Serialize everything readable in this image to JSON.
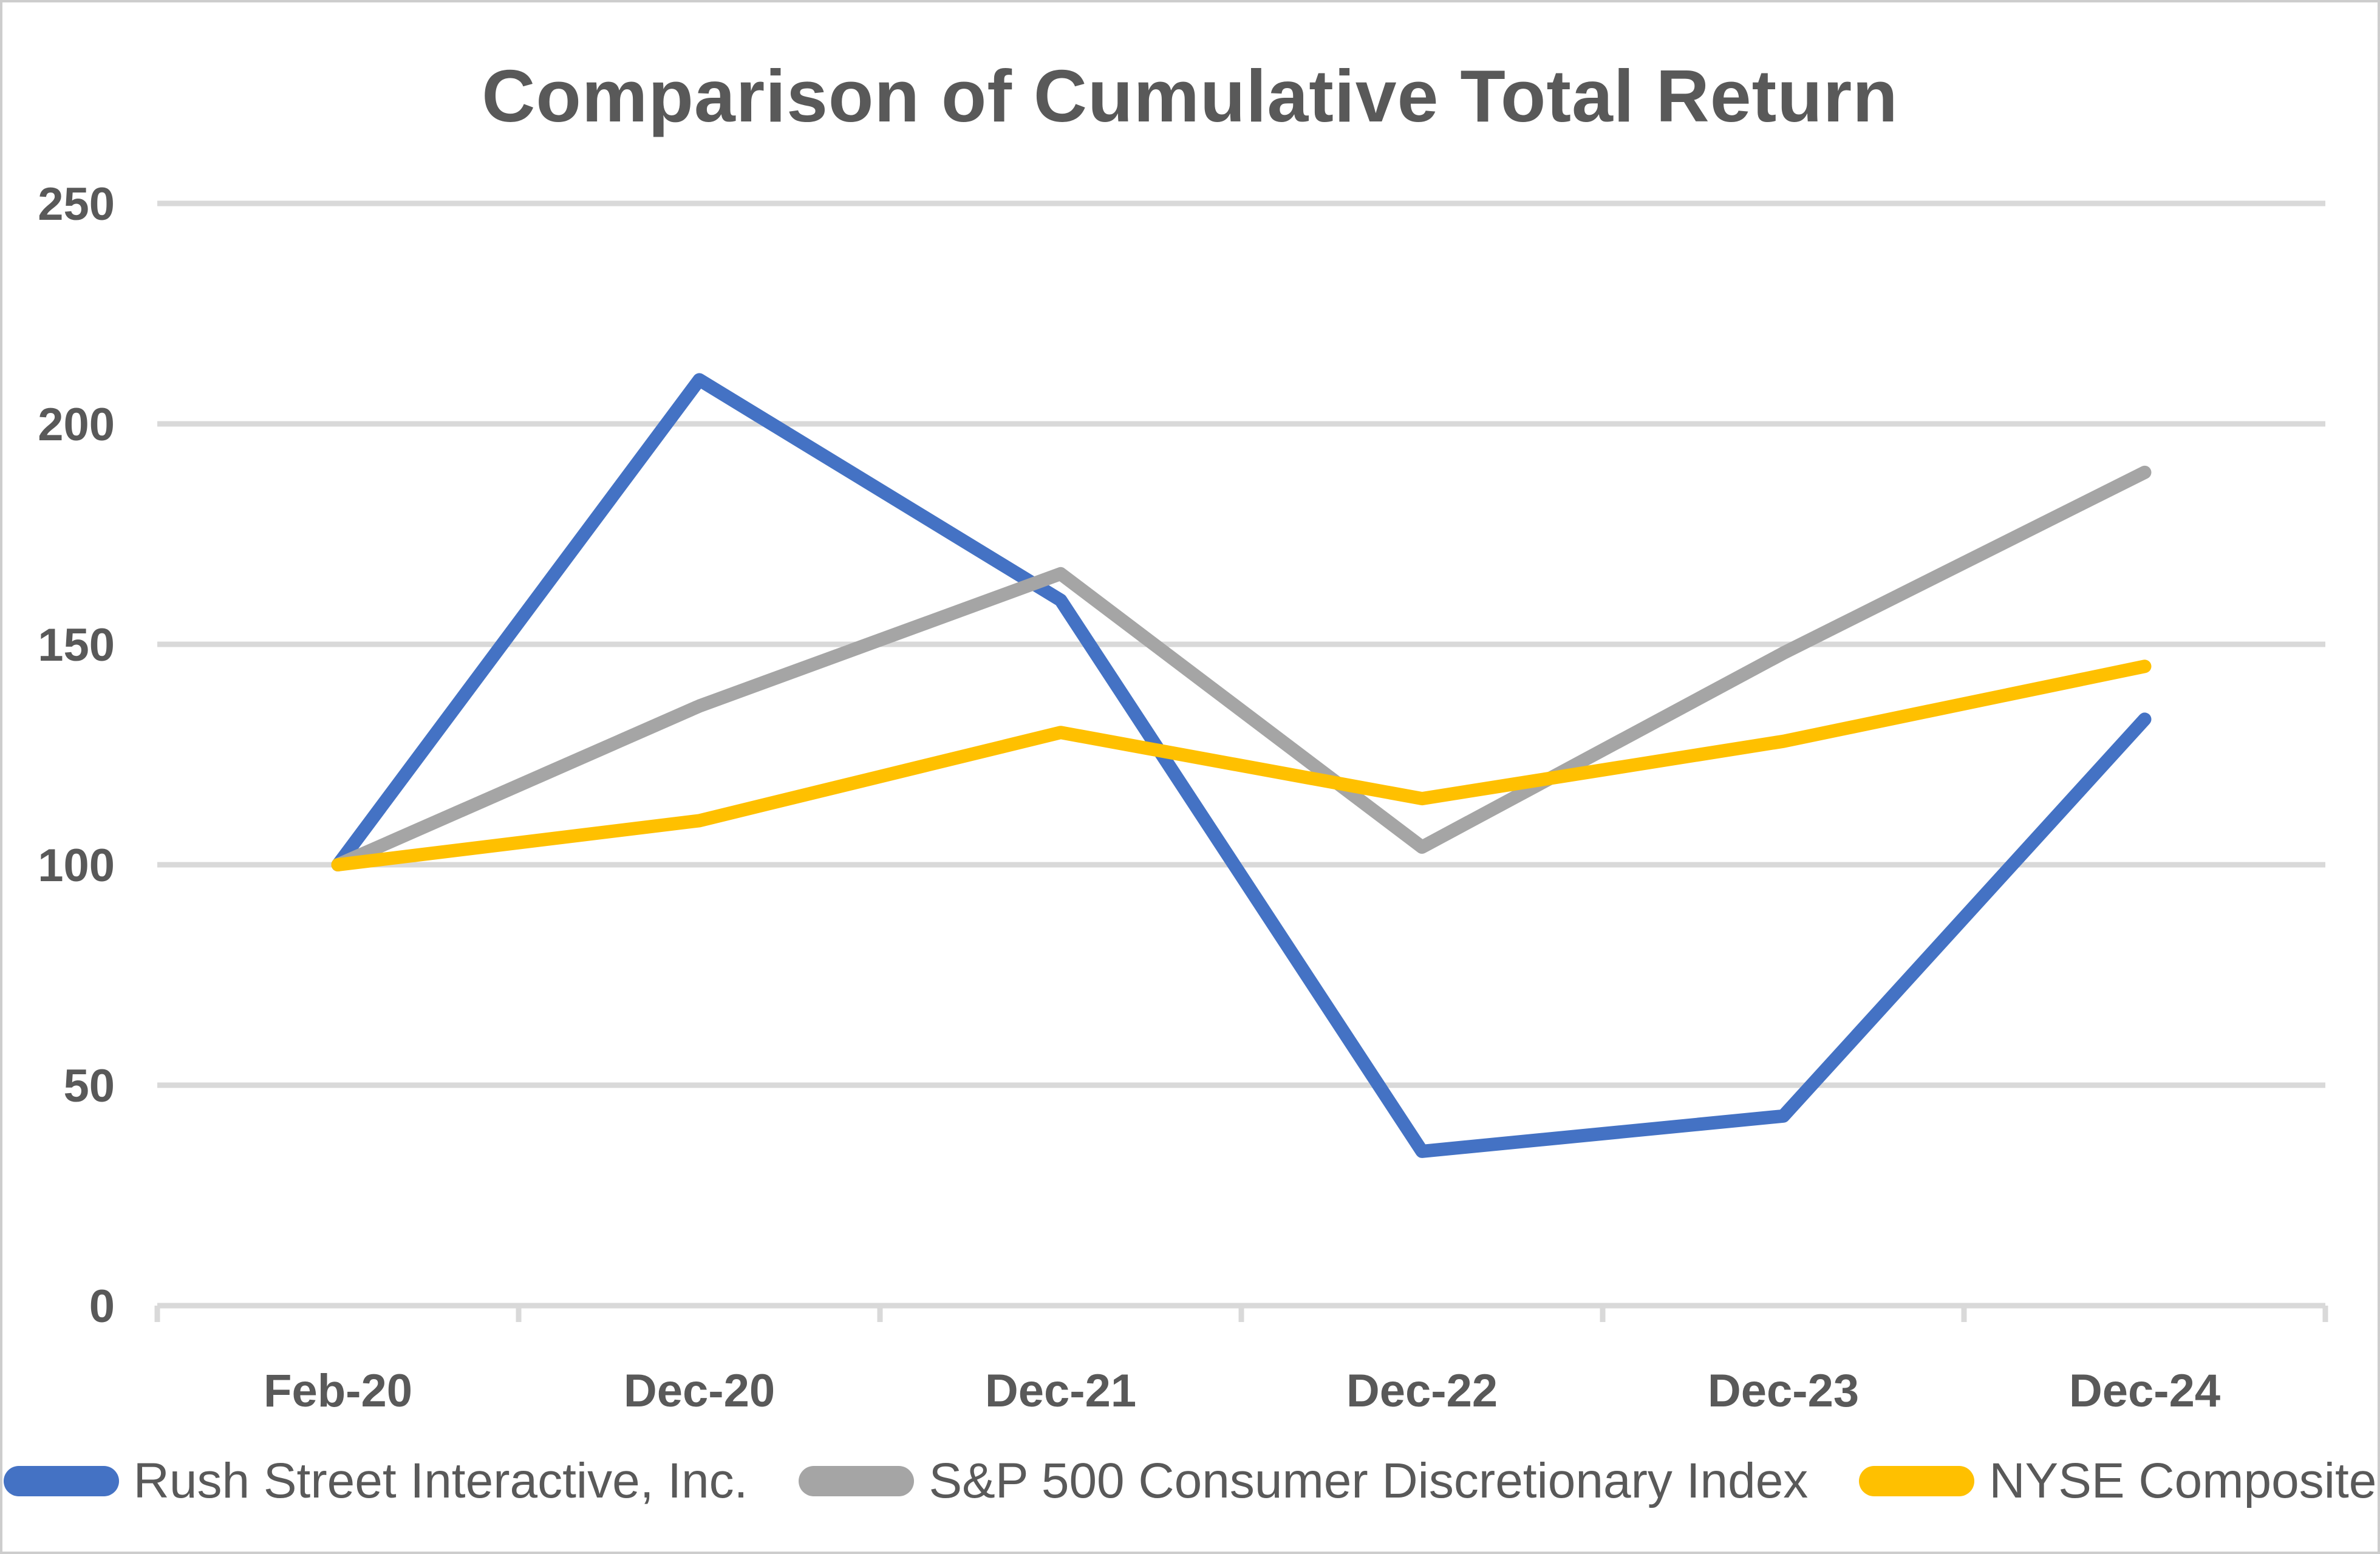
{
  "title": "Comparison of Cumulative Total Return",
  "chart_data": {
    "type": "line",
    "title": "Comparison of Cumulative Total Return",
    "categories": [
      "Feb-20",
      "Dec-20",
      "Dec-21",
      "Dec-22",
      "Dec-23",
      "Dec-24"
    ],
    "series": [
      {
        "name": "Rush Street Interactive, Inc.",
        "color": "#4472C4",
        "values": [
          100,
          210,
          160,
          35,
          43,
          133
        ]
      },
      {
        "name": "S&P 500 Consumer Discretionary Index",
        "color": "#A5A5A5",
        "values": [
          100,
          136,
          166,
          104,
          148,
          189
        ]
      },
      {
        "name": "NYSE Composite",
        "color": "#FFC000",
        "values": [
          100,
          110,
          130,
          115,
          128,
          145
        ]
      }
    ],
    "xlabel": "",
    "ylabel": "",
    "ylim": [
      0,
      250
    ],
    "y_ticks": [
      0,
      50,
      100,
      150,
      200,
      250
    ],
    "grid": true,
    "legend_position": "bottom",
    "text_color": "#595959",
    "gridline_color": "#D9D9D9"
  }
}
